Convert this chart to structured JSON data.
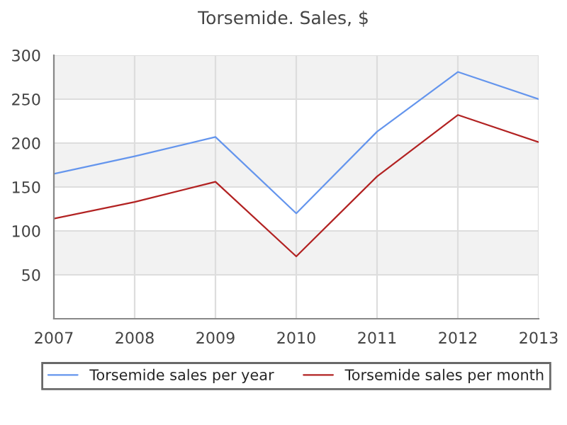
{
  "chart_data": {
    "type": "line",
    "title": "Torsemide. Sales, $",
    "x": [
      2007,
      2008,
      2009,
      2010,
      2011,
      2012,
      2013
    ],
    "series": [
      {
        "name": "Torsemide sales per year",
        "color": "#6495ed",
        "values": [
          165,
          185,
          207,
          120,
          213,
          281,
          250
        ]
      },
      {
        "name": "Torsemide sales per month",
        "color": "#b22222",
        "values": [
          114,
          133,
          156,
          71,
          162,
          232,
          201
        ]
      }
    ],
    "xlim": [
      2007,
      2013
    ],
    "xticks": [
      2007,
      2008,
      2009,
      2010,
      2011,
      2012,
      2013
    ],
    "ylim": [
      0,
      300
    ],
    "yticks": [
      50,
      100,
      150,
      200,
      250,
      300
    ],
    "bands": [
      {
        "axis": "y",
        "from": 50,
        "to": 100,
        "label": null,
        "color": "#f2f2f2"
      },
      {
        "axis": "y",
        "from": 150,
        "to": 200,
        "label": null,
        "color": "#f2f2f2"
      },
      {
        "axis": "y",
        "from": 250,
        "to": 300,
        "label": null,
        "color": "#f2f2f2"
      }
    ],
    "grid": true,
    "legend": "bottom",
    "marker": "none",
    "line_style": "solid"
  }
}
